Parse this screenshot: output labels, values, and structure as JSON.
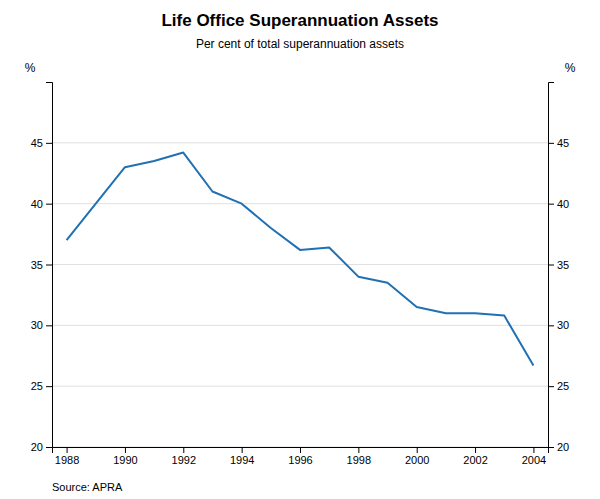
{
  "chart_data": {
    "type": "line",
    "title": "Life Office Superannuation Assets",
    "subtitle": "Per cent of total superannuation assets",
    "source": "Source: APRA",
    "ylabel": "%",
    "y2label": "%",
    "x": [
      1988,
      1989,
      1990,
      1991,
      1992,
      1993,
      1994,
      1995,
      1996,
      1997,
      1998,
      1999,
      2000,
      2001,
      2002,
      2003,
      2004
    ],
    "values": [
      37.0,
      40.0,
      43.0,
      43.5,
      44.2,
      41.0,
      40.0,
      38.0,
      36.2,
      36.4,
      34.0,
      33.5,
      31.5,
      31.0,
      31.0,
      30.8,
      26.7
    ],
    "color": "#2070B4",
    "xlim": [
      1987.5,
      2004.5
    ],
    "xticks": [
      1988,
      1990,
      1992,
      1994,
      1996,
      1998,
      2000,
      2002,
      2004
    ],
    "ylim": [
      20,
      50
    ],
    "yticks": [
      20,
      25,
      30,
      35,
      40,
      45
    ],
    "y2lim": [
      20,
      50
    ],
    "y2ticks": [
      20,
      25,
      30,
      35,
      40,
      45
    ],
    "grid": true
  }
}
